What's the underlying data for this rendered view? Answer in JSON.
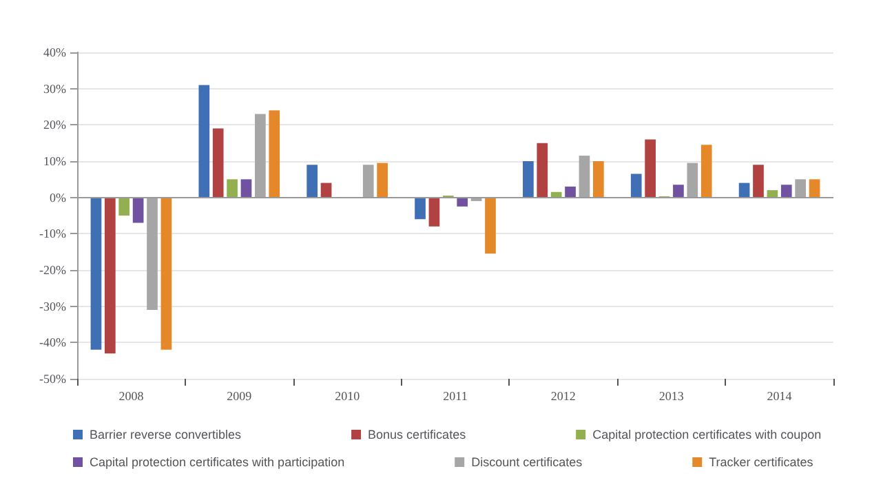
{
  "chart_data": {
    "type": "bar",
    "categories": [
      "2008",
      "2009",
      "2010",
      "2011",
      "2012",
      "2013",
      "2014"
    ],
    "series": [
      {
        "name": "Barrier reverse convertibles",
        "color": "#3f6fb5",
        "values": [
          -42,
          31,
          9,
          -6,
          10,
          6.5,
          4
        ]
      },
      {
        "name": "Bonus certificates",
        "color": "#b24141",
        "values": [
          -43,
          19,
          4,
          -8,
          15,
          16,
          9
        ]
      },
      {
        "name": "Capital protection certificates with coupon",
        "color": "#92b050",
        "values": [
          -5,
          5,
          0,
          0.5,
          1.5,
          0.3,
          2
        ]
      },
      {
        "name": "Capital protection certificates with participation",
        "color": "#7052a0",
        "values": [
          -7,
          5,
          0,
          -2.5,
          3,
          3.5,
          3.5
        ]
      },
      {
        "name": "Discount certificates",
        "color": "#a6a6a6",
        "values": [
          -31,
          23,
          9,
          -1,
          11.5,
          9.5,
          5
        ]
      },
      {
        "name": "Tracker certificates",
        "color": "#e5882a",
        "values": [
          -42,
          24,
          9.5,
          -15.5,
          10,
          14.5,
          5
        ]
      }
    ],
    "ylim": [
      -50,
      40
    ],
    "yticks": [
      {
        "value": -50,
        "label": "-50%"
      },
      {
        "value": -40,
        "label": "-40%"
      },
      {
        "value": -30,
        "label": "-30%"
      },
      {
        "value": -20,
        "label": "-20%"
      },
      {
        "value": -10,
        "label": "-10%"
      },
      {
        "value": 0,
        "label": "0%"
      },
      {
        "value": 10,
        "label": "10%"
      },
      {
        "value": 20,
        "label": "20%"
      },
      {
        "value": 30,
        "label": "30%"
      },
      {
        "value": 40,
        "label": "40%"
      }
    ],
    "grid": "y",
    "legend": "bottom"
  }
}
